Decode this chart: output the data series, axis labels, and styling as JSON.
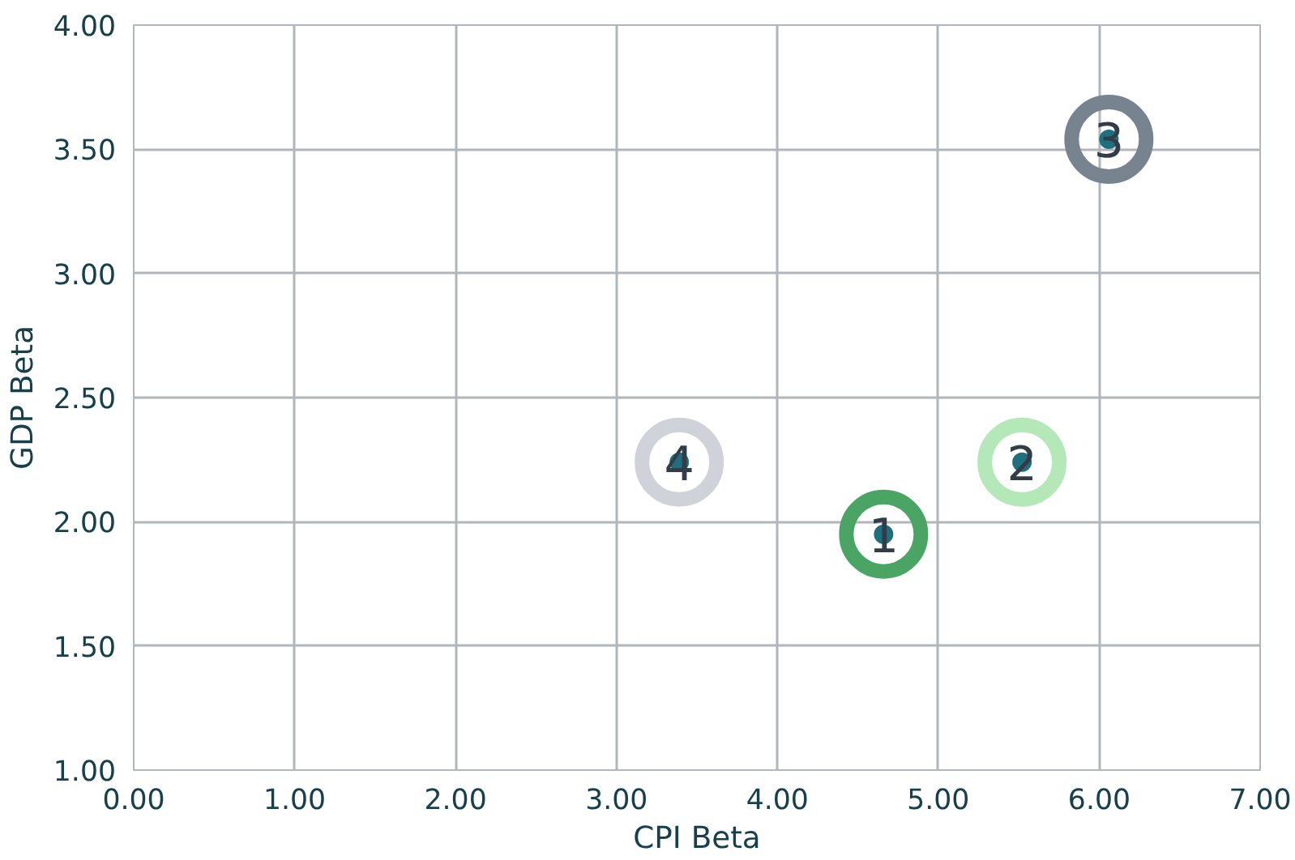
{
  "chart_data": {
    "type": "scatter",
    "xlabel": "CPI Beta",
    "ylabel": "GDP Beta",
    "x": [
      4.66,
      5.52,
      6.06,
      3.39
    ],
    "series": [
      {
        "color": "#4aa564",
        "colors": [
          "#4aa564",
          "#b5e8b8",
          "#77838f",
          "#cfd3d9"
        ],
        "values": [
          1.95,
          2.24,
          3.54,
          2.24
        ],
        "marker": "circle"
      },
      {
        "color": "#1f6f7f",
        "values": [
          1.95,
          2.24,
          3.54,
          2.24
        ],
        "marker": "circle"
      }
    ],
    "annotations": [
      {
        "text": "1",
        "x": 4.66,
        "y": 1.95
      },
      {
        "text": "2",
        "x": 5.52,
        "y": 2.24
      },
      {
        "text": "3",
        "x": 6.06,
        "y": 3.54
      },
      {
        "text": "4",
        "x": 3.39,
        "y": 2.24
      }
    ],
    "xlim": [
      0,
      7
    ],
    "ylim": [
      1,
      4
    ],
    "xticks": [
      {
        "value": 0,
        "label": "0.00"
      },
      {
        "value": 1,
        "label": "1.00"
      },
      {
        "value": 2,
        "label": "2.00"
      },
      {
        "value": 3,
        "label": "3.00"
      },
      {
        "value": 4,
        "label": "4.00"
      },
      {
        "value": 5,
        "label": "5.00"
      },
      {
        "value": 6,
        "label": "6.00"
      },
      {
        "value": 7,
        "label": "7.00"
      }
    ],
    "yticks": [
      {
        "value": 1,
        "label": "1.00"
      },
      {
        "value": 1.5,
        "label": "1.50"
      },
      {
        "value": 2,
        "label": "2.00"
      },
      {
        "value": 2.5,
        "label": "2.50"
      },
      {
        "value": 3,
        "label": "3.00"
      },
      {
        "value": 3.5,
        "label": "3.50"
      },
      {
        "value": 4,
        "label": "4.00"
      }
    ],
    "grid": true
  }
}
